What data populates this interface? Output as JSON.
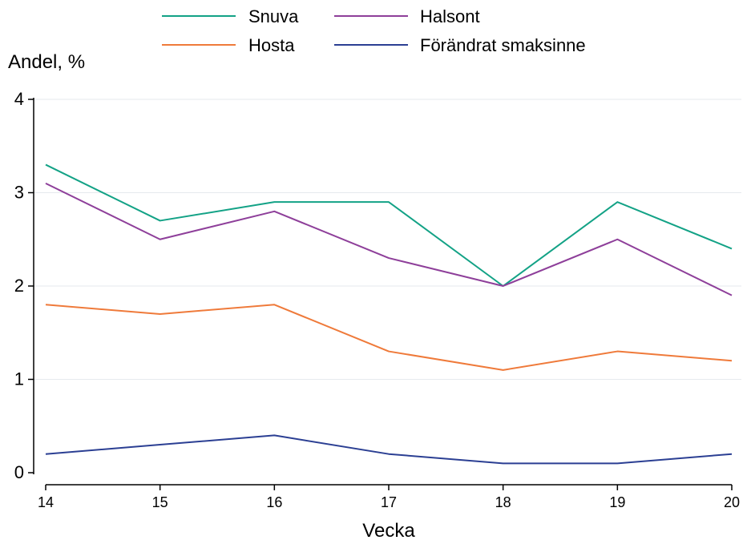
{
  "chart_data": {
    "type": "line",
    "xlabel": "Vecka",
    "ylabel": "Andel, %",
    "x": [
      14,
      15,
      16,
      17,
      18,
      19,
      20
    ],
    "xlim": [
      14,
      20
    ],
    "ylim": [
      0,
      4
    ],
    "yticks": [
      0,
      1,
      2,
      3,
      4
    ],
    "grid": true,
    "legend_position": "top",
    "series": [
      {
        "name": "Snuva",
        "color": "#13a286",
        "values": [
          3.3,
          2.7,
          2.9,
          2.9,
          2.0,
          2.9,
          2.4
        ]
      },
      {
        "name": "Halsont",
        "color": "#8e3f9a",
        "values": [
          3.1,
          2.5,
          2.8,
          2.3,
          2.0,
          2.5,
          1.9
        ]
      },
      {
        "name": "Hosta",
        "color": "#ef7a3a",
        "values": [
          1.8,
          1.7,
          1.8,
          1.3,
          1.1,
          1.3,
          1.2
        ]
      },
      {
        "name": "Förändrat smaksinne",
        "color": "#2b3f93",
        "values": [
          0.2,
          0.3,
          0.4,
          0.2,
          0.1,
          0.1,
          0.2
        ]
      }
    ]
  }
}
